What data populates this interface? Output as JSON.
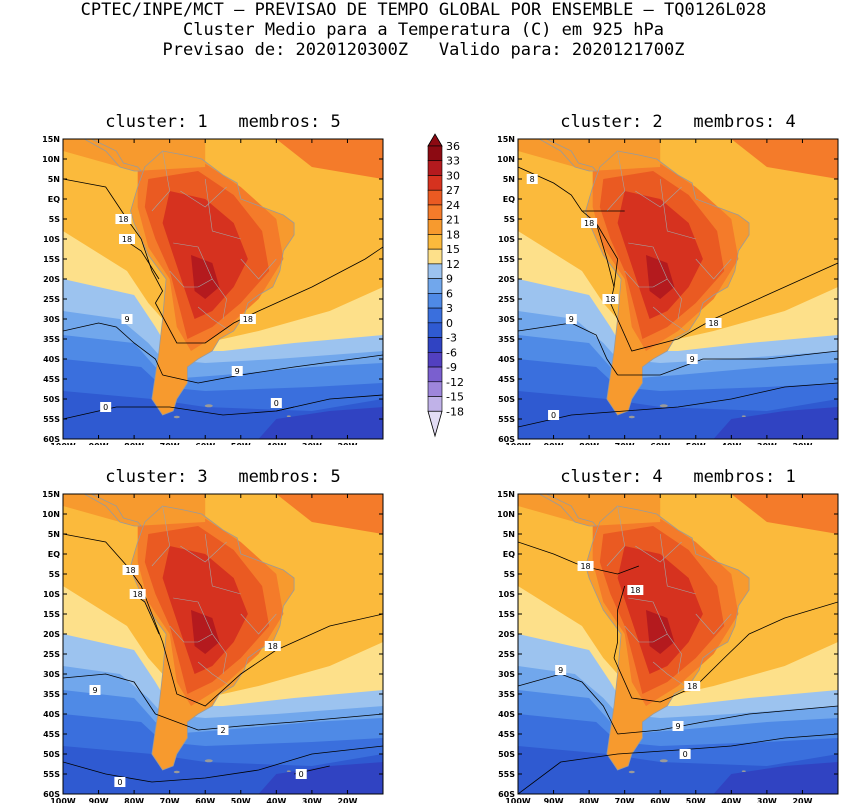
{
  "header": {
    "line1": "CPTEC/INPE/MCT – PREVISAO DE TEMPO GLOBAL POR ENSEMBLE – TQ0126L028",
    "line2": "Cluster Medio para a Temperatura (C) em 925 hPa",
    "line3": "Previsao de: 2020120300Z   Valido para: 2020121700Z"
  },
  "axes": {
    "lat_ticks": [
      "15N",
      "10N",
      "5N",
      "EQ",
      "5S",
      "10S",
      "15S",
      "20S",
      "25S",
      "30S",
      "35S",
      "40S",
      "45S",
      "50S",
      "55S",
      "60S"
    ],
    "lon_ticks": [
      "100W",
      "90W",
      "80W",
      "70W",
      "60W",
      "50W",
      "40W",
      "30W",
      "20W"
    ],
    "lon_range": [
      -100,
      -10
    ],
    "lat_range": [
      -60,
      15
    ]
  },
  "colorbar": {
    "levels": [
      "36",
      "33",
      "30",
      "27",
      "24",
      "21",
      "18",
      "15",
      "12",
      "9",
      "6",
      "3",
      "0",
      "-3",
      "-6",
      "-9",
      "-12",
      "-15",
      "-18"
    ],
    "colors": [
      "#8c0a12",
      "#b41a1e",
      "#d6321f",
      "#ea5a22",
      "#f47b2a",
      "#f79a2e",
      "#fbba3c",
      "#fde08a",
      "#9cc3ef",
      "#71a7ec",
      "#4f8ae6",
      "#3a6fdd",
      "#2f5ad1",
      "#3043c2",
      "#5240c0",
      "#7a5fcf",
      "#9e86db",
      "#c0b2e8",
      "#e2dcf4"
    ]
  },
  "panels": [
    {
      "title": "cluster: 1   membros: 5",
      "contour_labels": [
        "18",
        "18",
        "9",
        "18",
        "9",
        "0",
        "0"
      ]
    },
    {
      "title": "cluster: 2   membros: 4",
      "contour_labels": [
        "8",
        "18",
        "18",
        "9",
        "18",
        "9",
        "0",
        "0"
      ]
    },
    {
      "title": "cluster: 3   membros: 5",
      "contour_labels": [
        "18",
        "18",
        "9",
        "18",
        "2",
        "0",
        "0"
      ]
    },
    {
      "title": "cluster: 4   membros: 1",
      "contour_labels": [
        "18",
        "18",
        "9",
        "18",
        "9",
        "0"
      ]
    }
  ]
}
